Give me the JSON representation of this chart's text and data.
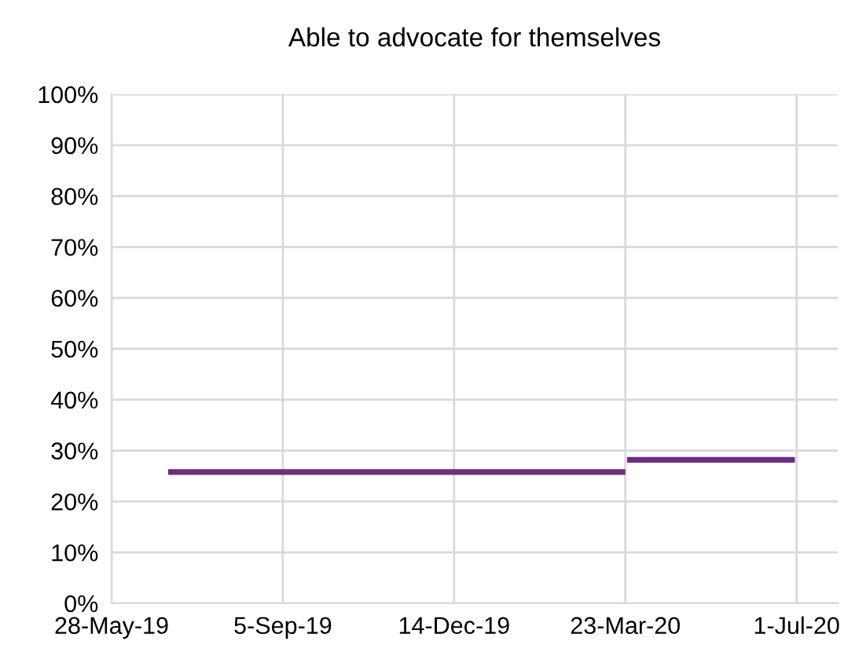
{
  "chart_data": {
    "type": "line",
    "title": "Able to advocate for themselves",
    "marker": "none",
    "line_style": "solid",
    "grid": true,
    "series": [
      {
        "color": "#6f2c80",
        "x": [
          "2019-06-30",
          "2020-03-23"
        ],
        "values": [
          25.8,
          25.8
        ]
      },
      {
        "color": "#6f2c80",
        "x": [
          "2020-03-24",
          "2020-06-30"
        ],
        "values": [
          28.2,
          28.2
        ]
      }
    ],
    "xlim": [
      "2019-05-28",
      "2020-07-25"
    ],
    "xticks": [
      {
        "value": "2019-05-28",
        "label": "28-May-19"
      },
      {
        "value": "2019-09-05",
        "label": "5-Sep-19"
      },
      {
        "value": "2019-12-14",
        "label": "14-Dec-19"
      },
      {
        "value": "2020-03-23",
        "label": "23-Mar-20"
      },
      {
        "value": "2020-07-01",
        "label": "1-Jul-20"
      }
    ],
    "ylim": [
      0,
      100
    ],
    "yticks": [
      {
        "value": 0,
        "label": "0%"
      },
      {
        "value": 10,
        "label": "10%"
      },
      {
        "value": 20,
        "label": "20%"
      },
      {
        "value": 30,
        "label": "30%"
      },
      {
        "value": 40,
        "label": "40%"
      },
      {
        "value": 50,
        "label": "50%"
      },
      {
        "value": 60,
        "label": "60%"
      },
      {
        "value": 70,
        "label": "70%"
      },
      {
        "value": 80,
        "label": "80%"
      },
      {
        "value": 90,
        "label": "90%"
      },
      {
        "value": 100,
        "label": "100%"
      }
    ]
  }
}
